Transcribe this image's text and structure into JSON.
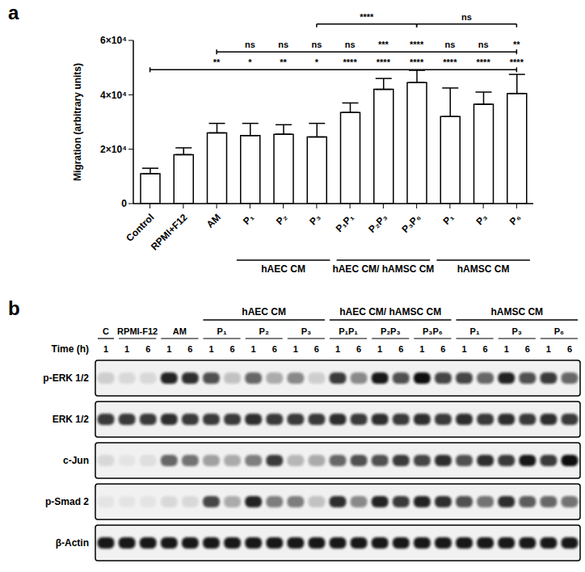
{
  "chart_data": {
    "type": "bar",
    "panel": "a",
    "y_label": "Migration (arbitrary units)",
    "categories": [
      "Control",
      "RPMI+F12",
      "AM",
      "P₁",
      "P₂",
      "P₃",
      "P₁P₁",
      "P₂P₃",
      "P₃P₆",
      "P₁",
      "P₃",
      "P₆"
    ],
    "values": [
      11000,
      18000,
      26000,
      25000,
      25500,
      24500,
      33500,
      42000,
      44500,
      32000,
      36500,
      40500
    ],
    "errors": [
      2000,
      2500,
      3500,
      4500,
      3500,
      5000,
      3500,
      4000,
      4500,
      10500,
      4500,
      7000
    ],
    "color": "#ffffff",
    "ylim": [
      0,
      60000
    ],
    "yticks": [
      0,
      {
        "value": 20000,
        "label": "2×10⁴"
      },
      {
        "value": 40000,
        "label": "4×10⁴"
      },
      {
        "value": 60000,
        "label": "6×10⁴"
      }
    ],
    "grid": false,
    "groups": [
      {
        "label": "hAEC CM",
        "from": 3,
        "to": 5
      },
      {
        "label": "hAEC CM/ hAMSC CM",
        "from": 6,
        "to": 8
      },
      {
        "label": "hAMSC CM",
        "from": 9,
        "to": 11
      }
    ],
    "comparison_rows": [
      {
        "from": 0,
        "to": 11,
        "labels": [
          null,
          null,
          "**",
          "*",
          "**",
          "*",
          "****",
          "****",
          "****",
          "****",
          "****",
          "****"
        ]
      },
      {
        "from": 2,
        "to": 11,
        "labels": [
          null,
          null,
          null,
          "ns",
          "ns",
          "ns",
          "ns",
          "***",
          "****",
          "ns",
          "ns",
          "**"
        ]
      }
    ],
    "brackets": [
      {
        "from": 5,
        "to": 8,
        "label": "****"
      },
      {
        "from": 8,
        "to": 11,
        "label": "ns"
      }
    ]
  },
  "blot": {
    "panel": "b",
    "time_label": "Time (h)",
    "conditions": [
      {
        "label": "C",
        "times": [
          1
        ]
      },
      {
        "label": "RPMI-F12",
        "times": [
          1,
          6
        ]
      },
      {
        "label": "AM",
        "times": [
          1,
          6
        ]
      },
      {
        "label": "P₁",
        "times": [
          1,
          6
        ]
      },
      {
        "label": "P₂",
        "times": [
          1,
          6
        ]
      },
      {
        "label": "P₃",
        "times": [
          1,
          6
        ]
      },
      {
        "label": "P₁P₁",
        "times": [
          1,
          6
        ]
      },
      {
        "label": "P₂P₃",
        "times": [
          1,
          6
        ]
      },
      {
        "label": "P₃P₆",
        "times": [
          1,
          6
        ]
      },
      {
        "label": "P₁",
        "times": [
          1,
          6
        ]
      },
      {
        "label": "P₃",
        "times": [
          1,
          6
        ]
      },
      {
        "label": "P₆",
        "times": [
          1,
          6
        ]
      }
    ],
    "groups": [
      {
        "label": "hAEC CM",
        "from": 3,
        "to": 5
      },
      {
        "label": "hAEC CM/ hAMSC CM",
        "from": 6,
        "to": 8
      },
      {
        "label": "hAMSC CM",
        "from": 9,
        "to": 11
      }
    ],
    "rows": [
      {
        "name": "p-ERK 1/2",
        "intensity": [
          0.15,
          0.1,
          0.1,
          0.9,
          0.85,
          0.7,
          0.2,
          0.6,
          0.3,
          0.45,
          0.15,
          0.8,
          0.45,
          0.95,
          0.7,
          1.0,
          0.75,
          0.75,
          0.6,
          0.9,
          0.7,
          0.8,
          0.6
        ]
      },
      {
        "name": "ERK 1/2",
        "intensity": [
          0.8,
          0.8,
          0.8,
          0.85,
          0.8,
          0.8,
          0.8,
          0.85,
          0.8,
          0.8,
          0.8,
          0.85,
          0.8,
          0.85,
          0.8,
          0.85,
          0.8,
          0.85,
          0.8,
          0.85,
          0.8,
          0.85,
          0.8
        ]
      },
      {
        "name": "c-Jun",
        "intensity": [
          0.1,
          0.05,
          0.08,
          0.6,
          0.55,
          0.35,
          0.3,
          0.5,
          0.8,
          0.25,
          0.3,
          0.6,
          0.7,
          0.7,
          0.8,
          0.75,
          0.85,
          0.7,
          0.85,
          0.8,
          0.95,
          0.8,
          1.0
        ]
      },
      {
        "name": "p-Smad 2",
        "intensity": [
          0.05,
          0.05,
          0.05,
          0.1,
          0.1,
          0.75,
          0.3,
          0.9,
          0.5,
          0.5,
          0.2,
          0.85,
          0.45,
          0.9,
          0.8,
          0.9,
          0.85,
          0.7,
          0.55,
          0.85,
          0.65,
          0.6,
          0.55
        ]
      },
      {
        "name": "β-Actin",
        "intensity": [
          0.95,
          0.95,
          0.95,
          0.95,
          0.95,
          0.95,
          0.95,
          0.95,
          0.95,
          0.95,
          0.95,
          0.95,
          0.95,
          0.95,
          0.95,
          0.95,
          0.95,
          0.95,
          0.95,
          0.95,
          0.95,
          0.95,
          0.95
        ]
      }
    ]
  }
}
